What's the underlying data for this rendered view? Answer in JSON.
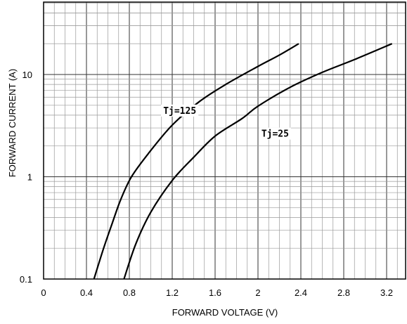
{
  "chart_data": {
    "type": "line",
    "title": "",
    "xlabel": "FORWARD VOLTAGE (V)",
    "ylabel": "FORWARD CURRENT (A)",
    "xlim": [
      0,
      3.3
    ],
    "ylim": [
      0.1,
      50
    ],
    "y_scale": "log",
    "grid": true,
    "x_ticks": [
      0,
      0.4,
      0.8,
      1.2,
      1.6,
      2,
      2.4,
      2.8,
      3.2
    ],
    "x_tick_labels": [
      "0",
      "0.4",
      "0.8",
      "1.2",
      "1.6",
      "2",
      "2.4",
      "2.8",
      "3.2"
    ],
    "y_ticks": [
      0.1,
      1,
      10
    ],
    "y_tick_labels": [
      "0.1",
      "1",
      "10"
    ],
    "series": [
      {
        "name": "Tj=125",
        "points": [
          [
            0.47,
            0.1
          ],
          [
            0.56,
            0.2
          ],
          [
            0.64,
            0.35
          ],
          [
            0.72,
            0.6
          ],
          [
            0.82,
            1.0
          ],
          [
            0.98,
            1.7
          ],
          [
            1.2,
            3.2
          ],
          [
            1.45,
            5.4
          ],
          [
            1.7,
            8.0
          ],
          [
            2.0,
            12.0
          ],
          [
            2.2,
            15.5
          ],
          [
            2.38,
            20.0
          ]
        ]
      },
      {
        "name": "Tj=25",
        "points": [
          [
            0.75,
            0.1
          ],
          [
            0.86,
            0.22
          ],
          [
            1.0,
            0.45
          ],
          [
            1.2,
            0.92
          ],
          [
            1.4,
            1.55
          ],
          [
            1.6,
            2.5
          ],
          [
            1.85,
            3.7
          ],
          [
            2.0,
            4.9
          ],
          [
            2.3,
            7.5
          ],
          [
            2.6,
            10.5
          ],
          [
            2.9,
            14.0
          ],
          [
            3.25,
            20.0
          ]
        ]
      }
    ],
    "annotations": [
      "Tj=125",
      "Tj=25"
    ]
  }
}
